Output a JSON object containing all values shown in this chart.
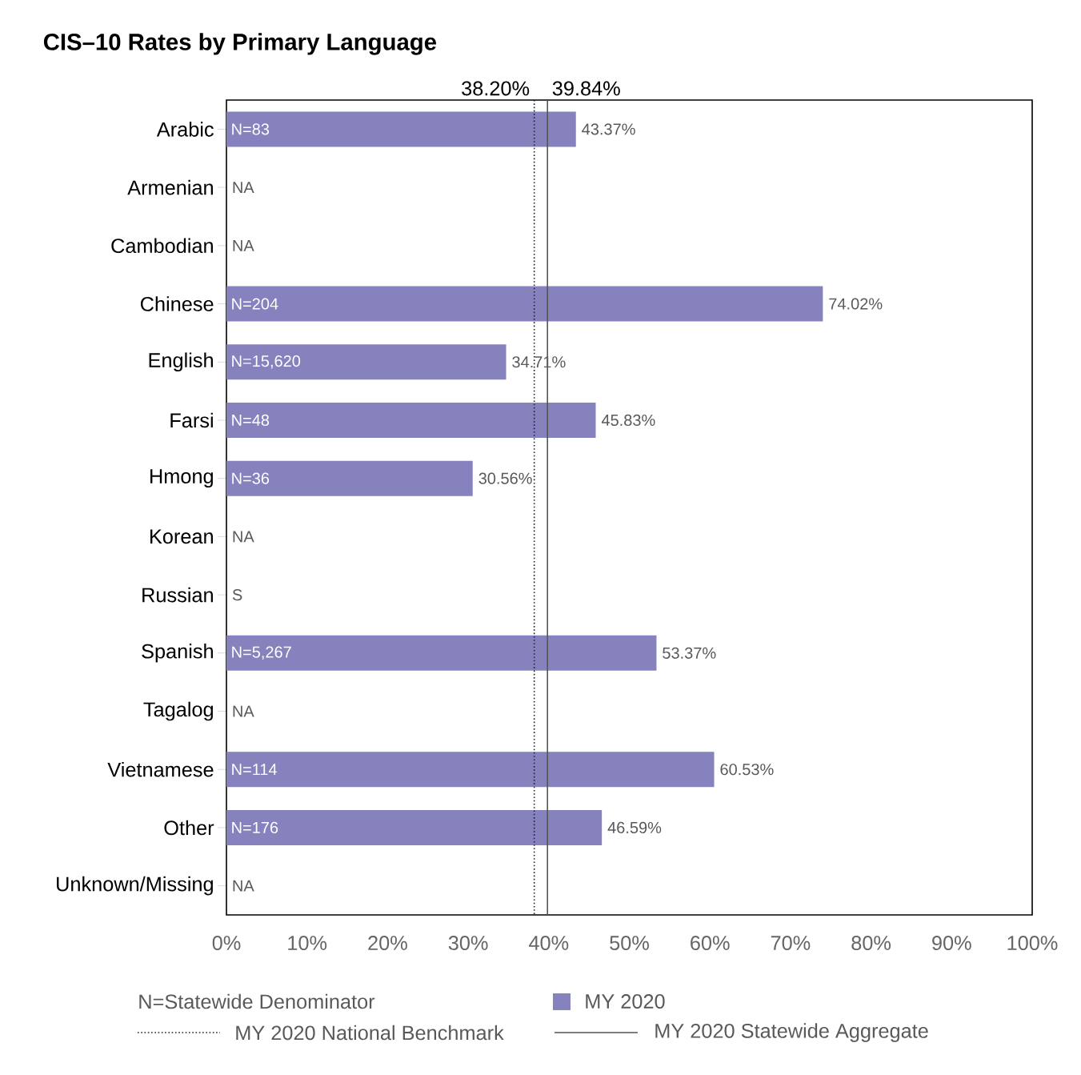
{
  "chart_data": {
    "type": "bar",
    "orientation": "horizontal",
    "title": "CIS–10 Rates by Primary Language",
    "categories": [
      "Arabic",
      "Armenian",
      "Cambodian",
      "Chinese",
      "English",
      "Farsi",
      "Hmong",
      "Korean",
      "Russian",
      "Spanish",
      "Tagalog",
      "Vietnamese",
      "Other",
      "Unknown/Missing"
    ],
    "series": [
      {
        "name": "MY 2020",
        "color": "#8682be",
        "values": [
          43.37,
          null,
          null,
          74.02,
          34.71,
          45.83,
          30.56,
          null,
          null,
          53.37,
          null,
          60.53,
          46.59,
          null
        ],
        "value_labels": [
          "43.37%",
          "NA",
          "NA",
          "74.02%",
          "34.71%",
          "45.83%",
          "30.56%",
          "NA",
          "S",
          "53.37%",
          "NA",
          "60.53%",
          "46.59%",
          "NA"
        ]
      }
    ],
    "xlim": [
      0,
      100
    ],
    "xticks": [
      {
        "value": 0,
        "label": "0%"
      },
      {
        "value": 10,
        "label": "10%"
      },
      {
        "value": 20,
        "label": "20%"
      },
      {
        "value": 30,
        "label": "30%"
      },
      {
        "value": 40,
        "label": "40%"
      },
      {
        "value": 50,
        "label": "50%"
      },
      {
        "value": 60,
        "label": "60%"
      },
      {
        "value": 70,
        "label": "70%"
      },
      {
        "value": 80,
        "label": "80%"
      },
      {
        "value": 90,
        "label": "90%"
      },
      {
        "value": 100,
        "label": "100%"
      }
    ],
    "ref_lines": [
      {
        "axis": "x",
        "value": 38.2,
        "label": "MY 2020 National Benchmark",
        "line_style": "dotted",
        "color": "#222222"
      },
      {
        "axis": "x",
        "value": 39.84,
        "label": "MY 2020 Statewide Aggregate",
        "line_style": "solid",
        "color": "#555555"
      }
    ],
    "annotations": [
      "38.20%",
      "39.84%",
      "N=83",
      "N=204",
      "N=15,620",
      "N=48",
      "N=36",
      "N=5,267",
      "N=114",
      "N=176",
      "N=Statewide Denominator"
    ],
    "legend": "bottom",
    "grid": false
  }
}
